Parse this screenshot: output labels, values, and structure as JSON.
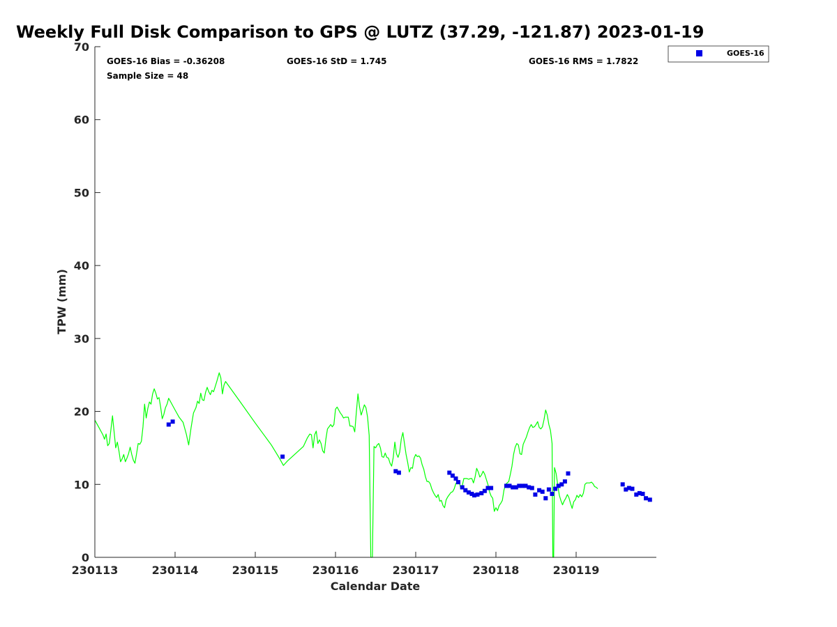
{
  "chart_data": {
    "type": "scatter",
    "title": "Weekly Full Disk Comparison to GPS @ LUTZ (37.29, -121.87) 2023-01-19",
    "xlabel": "Calendar Date",
    "ylabel": "TPW (mm)",
    "xlim": [
      0,
      7
    ],
    "ylim": [
      0,
      70
    ],
    "x_unit": "days since 230113",
    "x_ticks": [
      0,
      1,
      2,
      3,
      4,
      5,
      6
    ],
    "x_tick_labels": [
      "230113",
      "230114",
      "230115",
      "230116",
      "230117",
      "230118",
      "230119"
    ],
    "y_ticks": [
      0,
      10,
      20,
      30,
      40,
      50,
      60,
      70
    ],
    "y_tick_labels": [
      "0",
      "10",
      "20",
      "30",
      "40",
      "50",
      "60",
      "70"
    ],
    "grid": false,
    "legend_placement": "outside-top-right",
    "stats": {
      "bias": "GOES-16 Bias = -0.36208",
      "std": "GOES-16 StD = 1.745",
      "rms": "GOES-16 RMS = 1.7822",
      "sample_size": "Sample Size = 48"
    },
    "series": [
      {
        "kind": "line",
        "color": "#00ff00",
        "points": [
          [
            0.0,
            18.8
          ],
          [
            0.05,
            17.8
          ],
          [
            0.1,
            16.8
          ],
          [
            0.12,
            16.2
          ],
          [
            0.14,
            16.9
          ],
          [
            0.16,
            15.3
          ],
          [
            0.18,
            15.6
          ],
          [
            0.2,
            17.5
          ],
          [
            0.22,
            19.4
          ],
          [
            0.24,
            17.2
          ],
          [
            0.26,
            15.0
          ],
          [
            0.28,
            15.8
          ],
          [
            0.3,
            14.6
          ],
          [
            0.32,
            13.1
          ],
          [
            0.34,
            13.5
          ],
          [
            0.36,
            14.1
          ],
          [
            0.38,
            13.1
          ],
          [
            0.4,
            13.6
          ],
          [
            0.42,
            14.2
          ],
          [
            0.44,
            15.1
          ],
          [
            0.46,
            14.1
          ],
          [
            0.48,
            13.3
          ],
          [
            0.5,
            12.9
          ],
          [
            0.52,
            14.2
          ],
          [
            0.54,
            15.6
          ],
          [
            0.56,
            15.5
          ],
          [
            0.58,
            15.9
          ],
          [
            0.6,
            17.9
          ],
          [
            0.62,
            21.0
          ],
          [
            0.64,
            19.1
          ],
          [
            0.66,
            20.4
          ],
          [
            0.68,
            21.3
          ],
          [
            0.7,
            21.0
          ],
          [
            0.72,
            22.4
          ],
          [
            0.74,
            23.1
          ],
          [
            0.76,
            22.5
          ],
          [
            0.78,
            21.7
          ],
          [
            0.8,
            21.9
          ],
          [
            0.82,
            20.6
          ],
          [
            0.84,
            19.0
          ],
          [
            0.86,
            19.6
          ],
          [
            0.88,
            20.5
          ],
          [
            0.9,
            21.0
          ],
          [
            0.92,
            21.8
          ],
          [
            0.95,
            21.2
          ],
          [
            1.0,
            20.2
          ],
          [
            1.05,
            19.2
          ],
          [
            1.1,
            18.5
          ],
          [
            1.14,
            16.9
          ],
          [
            1.17,
            15.4
          ],
          [
            1.2,
            17.8
          ],
          [
            1.23,
            19.8
          ],
          [
            1.26,
            20.5
          ],
          [
            1.28,
            21.4
          ],
          [
            1.3,
            21.1
          ],
          [
            1.32,
            22.5
          ],
          [
            1.34,
            21.6
          ],
          [
            1.36,
            21.5
          ],
          [
            1.38,
            22.6
          ],
          [
            1.4,
            23.3
          ],
          [
            1.42,
            22.7
          ],
          [
            1.44,
            22.3
          ],
          [
            1.46,
            22.9
          ],
          [
            1.48,
            22.7
          ],
          [
            1.5,
            23.4
          ],
          [
            1.52,
            24.1
          ],
          [
            1.54,
            24.9
          ],
          [
            1.55,
            25.3
          ],
          [
            1.57,
            24.6
          ],
          [
            1.59,
            22.4
          ],
          [
            1.61,
            23.6
          ],
          [
            1.63,
            24.1
          ],
          [
            1.8,
            21.5
          ],
          [
            2.0,
            18.4
          ],
          [
            2.2,
            15.4
          ],
          [
            2.3,
            13.6
          ],
          [
            2.35,
            12.6
          ],
          [
            2.4,
            13.2
          ],
          [
            2.5,
            14.2
          ],
          [
            2.6,
            15.2
          ],
          [
            2.65,
            16.4
          ],
          [
            2.68,
            16.9
          ],
          [
            2.7,
            16.8
          ],
          [
            2.72,
            15.0
          ],
          [
            2.74,
            16.8
          ],
          [
            2.76,
            17.3
          ],
          [
            2.78,
            15.6
          ],
          [
            2.8,
            16.1
          ],
          [
            2.82,
            15.6
          ],
          [
            2.84,
            14.6
          ],
          [
            2.86,
            14.3
          ],
          [
            2.88,
            16.2
          ],
          [
            2.9,
            17.6
          ],
          [
            2.92,
            17.9
          ],
          [
            2.94,
            18.2
          ],
          [
            2.96,
            17.9
          ],
          [
            2.98,
            18.2
          ],
          [
            3.0,
            20.3
          ],
          [
            3.02,
            20.6
          ],
          [
            3.04,
            20.2
          ],
          [
            3.06,
            19.8
          ],
          [
            3.08,
            19.5
          ],
          [
            3.1,
            19.1
          ],
          [
            3.12,
            19.2
          ],
          [
            3.14,
            19.2
          ],
          [
            3.16,
            19.2
          ],
          [
            3.18,
            18.0
          ],
          [
            3.2,
            18.0
          ],
          [
            3.22,
            17.9
          ],
          [
            3.24,
            17.2
          ],
          [
            3.26,
            19.9
          ],
          [
            3.28,
            22.4
          ],
          [
            3.3,
            20.6
          ],
          [
            3.32,
            19.5
          ],
          [
            3.34,
            20.2
          ],
          [
            3.36,
            20.9
          ],
          [
            3.38,
            20.5
          ],
          [
            3.4,
            19.2
          ],
          [
            3.42,
            16.7
          ],
          [
            3.44,
            0.0
          ],
          [
            3.46,
            0.0
          ],
          [
            3.48,
            15.2
          ],
          [
            3.5,
            15.0
          ],
          [
            3.52,
            15.4
          ],
          [
            3.54,
            15.6
          ],
          [
            3.56,
            15.0
          ],
          [
            3.58,
            13.8
          ],
          [
            3.6,
            13.7
          ],
          [
            3.62,
            14.3
          ],
          [
            3.64,
            13.7
          ],
          [
            3.66,
            13.6
          ],
          [
            3.68,
            12.9
          ],
          [
            3.7,
            12.5
          ],
          [
            3.72,
            13.7
          ],
          [
            3.74,
            15.8
          ],
          [
            3.76,
            14.2
          ],
          [
            3.78,
            13.7
          ],
          [
            3.8,
            14.4
          ],
          [
            3.82,
            16.2
          ],
          [
            3.84,
            17.1
          ],
          [
            3.86,
            15.6
          ],
          [
            3.88,
            14.1
          ],
          [
            3.9,
            13.0
          ],
          [
            3.92,
            11.7
          ],
          [
            3.94,
            12.3
          ],
          [
            3.96,
            12.2
          ],
          [
            3.98,
            13.6
          ],
          [
            4.0,
            14.1
          ],
          [
            4.02,
            13.8
          ],
          [
            4.04,
            13.9
          ],
          [
            4.06,
            13.6
          ],
          [
            4.08,
            12.7
          ],
          [
            4.1,
            12.1
          ],
          [
            4.12,
            11.1
          ],
          [
            4.14,
            10.4
          ],
          [
            4.16,
            10.4
          ],
          [
            4.18,
            10.1
          ],
          [
            4.2,
            9.4
          ],
          [
            4.22,
            8.9
          ],
          [
            4.24,
            8.5
          ],
          [
            4.26,
            8.2
          ],
          [
            4.28,
            8.6
          ],
          [
            4.3,
            7.7
          ],
          [
            4.32,
            7.8
          ],
          [
            4.34,
            7.1
          ],
          [
            4.36,
            6.8
          ],
          [
            4.38,
            7.9
          ],
          [
            4.4,
            8.3
          ],
          [
            4.42,
            8.6
          ],
          [
            4.44,
            8.9
          ],
          [
            4.46,
            9.0
          ],
          [
            4.48,
            9.4
          ],
          [
            4.5,
            10.1
          ],
          [
            4.52,
            10.4
          ],
          [
            4.54,
            10.5
          ],
          [
            4.56,
            9.5
          ],
          [
            4.58,
            9.8
          ],
          [
            4.6,
            10.8
          ],
          [
            4.62,
            10.8
          ],
          [
            4.64,
            10.8
          ],
          [
            4.66,
            10.7
          ],
          [
            4.68,
            10.8
          ],
          [
            4.7,
            10.8
          ],
          [
            4.72,
            10.2
          ],
          [
            4.74,
            11.0
          ],
          [
            4.76,
            12.2
          ],
          [
            4.78,
            11.7
          ],
          [
            4.8,
            11.0
          ],
          [
            4.82,
            11.3
          ],
          [
            4.84,
            11.8
          ],
          [
            4.86,
            11.4
          ],
          [
            4.88,
            10.7
          ],
          [
            4.9,
            10.0
          ],
          [
            4.92,
            9.0
          ],
          [
            4.94,
            8.4
          ],
          [
            4.96,
            8.1
          ],
          [
            4.98,
            6.3
          ],
          [
            5.0,
            6.8
          ],
          [
            5.02,
            6.4
          ],
          [
            5.04,
            7.1
          ],
          [
            5.06,
            7.4
          ],
          [
            5.08,
            7.8
          ],
          [
            5.1,
            9.2
          ],
          [
            5.12,
            10.0
          ],
          [
            5.14,
            10.2
          ],
          [
            5.16,
            10.4
          ],
          [
            5.18,
            11.4
          ],
          [
            5.2,
            12.5
          ],
          [
            5.22,
            14.1
          ],
          [
            5.24,
            15.1
          ],
          [
            5.26,
            15.6
          ],
          [
            5.28,
            15.4
          ],
          [
            5.3,
            14.2
          ],
          [
            5.32,
            14.1
          ],
          [
            5.34,
            15.5
          ],
          [
            5.36,
            16.0
          ],
          [
            5.38,
            16.5
          ],
          [
            5.4,
            17.2
          ],
          [
            5.42,
            17.8
          ],
          [
            5.44,
            18.2
          ],
          [
            5.46,
            17.8
          ],
          [
            5.48,
            17.9
          ],
          [
            5.5,
            18.2
          ],
          [
            5.52,
            18.6
          ],
          [
            5.54,
            17.8
          ],
          [
            5.56,
            17.6
          ],
          [
            5.58,
            17.9
          ],
          [
            5.6,
            18.9
          ],
          [
            5.62,
            20.2
          ],
          [
            5.64,
            19.5
          ],
          [
            5.66,
            18.2
          ],
          [
            5.68,
            17.4
          ],
          [
            5.7,
            15.6
          ],
          [
            5.71,
            0.0
          ],
          [
            5.72,
            0.0
          ],
          [
            5.73,
            12.3
          ],
          [
            5.75,
            11.5
          ],
          [
            5.77,
            10.0
          ],
          [
            5.79,
            8.5
          ],
          [
            5.81,
            7.8
          ],
          [
            5.83,
            7.2
          ],
          [
            5.85,
            7.7
          ],
          [
            5.87,
            8.1
          ],
          [
            5.89,
            8.6
          ],
          [
            5.91,
            8.2
          ],
          [
            5.93,
            7.4
          ],
          [
            5.95,
            6.7
          ],
          [
            5.97,
            7.6
          ],
          [
            5.99,
            7.9
          ],
          [
            6.01,
            8.5
          ],
          [
            6.03,
            8.2
          ],
          [
            6.05,
            8.6
          ],
          [
            6.07,
            8.3
          ],
          [
            6.09,
            8.8
          ],
          [
            6.11,
            10.0
          ],
          [
            6.13,
            10.2
          ],
          [
            6.15,
            10.2
          ],
          [
            6.17,
            10.2
          ],
          [
            6.19,
            10.3
          ],
          [
            6.21,
            10.1
          ],
          [
            6.23,
            9.7
          ],
          [
            6.25,
            9.6
          ],
          [
            6.27,
            9.4
          ]
        ]
      },
      {
        "kind": "scatter",
        "name": "GOES-16",
        "color": "#0000e6",
        "points": [
          [
            0.92,
            18.2
          ],
          [
            0.97,
            18.6
          ],
          [
            2.34,
            13.8
          ],
          [
            3.75,
            11.8
          ],
          [
            3.79,
            11.6
          ],
          [
            4.42,
            11.6
          ],
          [
            4.46,
            11.2
          ],
          [
            4.5,
            10.8
          ],
          [
            4.53,
            10.3
          ],
          [
            4.58,
            9.6
          ],
          [
            4.62,
            9.2
          ],
          [
            4.66,
            8.9
          ],
          [
            4.7,
            8.7
          ],
          [
            4.73,
            8.5
          ],
          [
            4.77,
            8.6
          ],
          [
            4.82,
            8.8
          ],
          [
            4.86,
            9.1
          ],
          [
            4.9,
            9.5
          ],
          [
            4.94,
            9.5
          ],
          [
            5.13,
            9.8
          ],
          [
            5.17,
            9.8
          ],
          [
            5.21,
            9.6
          ],
          [
            5.25,
            9.6
          ],
          [
            5.29,
            9.8
          ],
          [
            5.33,
            9.8
          ],
          [
            5.37,
            9.8
          ],
          [
            5.41,
            9.6
          ],
          [
            5.45,
            9.5
          ],
          [
            5.49,
            8.6
          ],
          [
            5.54,
            9.2
          ],
          [
            5.58,
            9.0
          ],
          [
            5.62,
            8.1
          ],
          [
            5.66,
            9.3
          ],
          [
            5.7,
            8.7
          ],
          [
            5.74,
            9.4
          ],
          [
            5.78,
            9.8
          ],
          [
            5.82,
            10.0
          ],
          [
            5.86,
            10.4
          ],
          [
            5.9,
            11.5
          ],
          [
            6.58,
            10.0
          ],
          [
            6.62,
            9.3
          ],
          [
            6.66,
            9.5
          ],
          [
            6.7,
            9.4
          ],
          [
            6.75,
            8.6
          ],
          [
            6.79,
            8.8
          ],
          [
            6.83,
            8.7
          ],
          [
            6.87,
            8.1
          ],
          [
            6.92,
            7.9
          ]
        ]
      }
    ]
  }
}
